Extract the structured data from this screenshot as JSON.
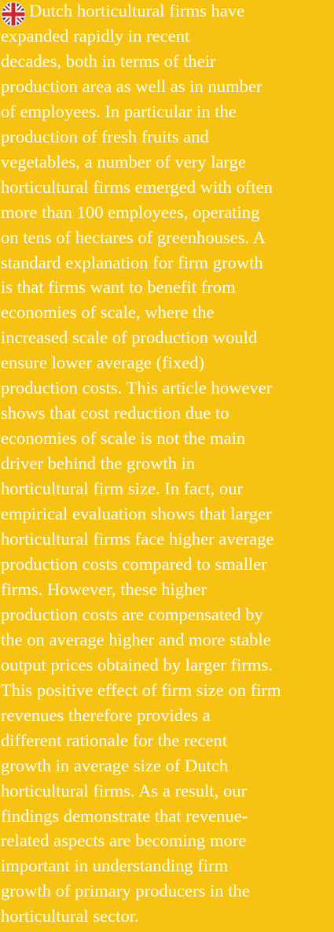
{
  "abstract": {
    "lines": [
      "Dutch horticultural firms have",
      "expanded rapidly in recent",
      "decades, both in terms of their",
      "production area as well as in number",
      "of employees. In particular in the",
      "production of fresh fruits and",
      "vegetables, a number of very large",
      "horticultural firms emerged with often",
      "more than 100 employees, operating",
      "on tens of hectares of greenhouses. A",
      "standard explanation for firm growth",
      "is that firms want to benefit from",
      "economies of scale, where the",
      "increased scale of production would",
      "ensure lower average (fixed)",
      "production costs. This article however",
      "shows that cost reduction due to",
      "economies of scale is not the main",
      "driver behind the growth in",
      "horticultural firm size. In fact, our",
      "empirical evaluation shows that larger",
      "horticultural firms face higher average",
      "production costs compared to smaller",
      "firms. However, these higher",
      "production costs are compensated by",
      "the on average higher and more stable",
      "output prices obtained by larger firms.",
      "This positive effect of firm size on firm",
      "revenues therefore provides a",
      "different rationale for the recent",
      "growth in average size of Dutch",
      "horticultural firms. As a result, our",
      "findings demonstrate that revenue-",
      "related aspects are becoming more",
      "important in understanding firm",
      "growth of primary producers in the",
      "horticultural sector."
    ]
  }
}
